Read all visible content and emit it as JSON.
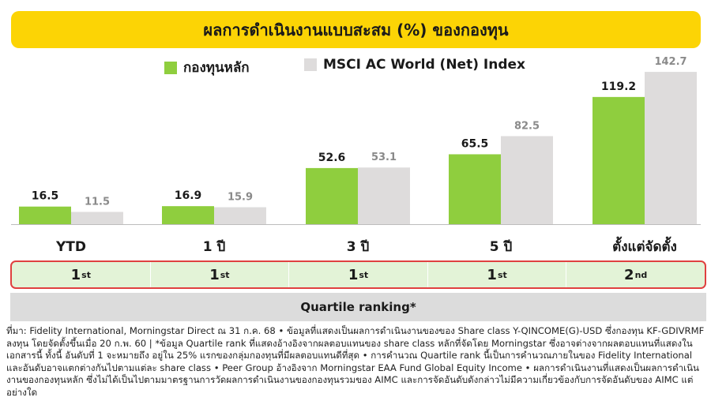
{
  "title": "ผลการดำเนินงานแบบสะสม (%) ของกองทุน",
  "colors": {
    "fund": "#8fce3e",
    "index": "#dedcdc",
    "title_bg": "#fcd405",
    "rank_bg": "#e3f3d7",
    "rank_border": "#e04040"
  },
  "chart_data": {
    "type": "bar",
    "categories": [
      "YTD",
      "1 ปี",
      "3 ปี",
      "5 ปี",
      "ตั้งแต่จัดตั้ง"
    ],
    "series": [
      {
        "name": "กองทุนหลัก",
        "values": [
          16.5,
          16.9,
          52.6,
          65.5,
          119.2
        ]
      },
      {
        "name": "MSCI AC World (Net) Index",
        "values": [
          11.5,
          15.9,
          53.1,
          82.5,
          142.7
        ]
      }
    ],
    "ylim": [
      0,
      162
    ],
    "grid": false,
    "legend": "top-center",
    "title": "ผลการดำเนินงานแบบสะสม (%) ของกองทุน"
  },
  "quartile": {
    "ranks": [
      {
        "num": "1",
        "suffix": "st"
      },
      {
        "num": "1",
        "suffix": "st"
      },
      {
        "num": "1",
        "suffix": "st"
      },
      {
        "num": "1",
        "suffix": "st"
      },
      {
        "num": "2",
        "suffix": "nd"
      }
    ],
    "label": "Quartile ranking*"
  },
  "footnote": "ที่มา: Fidelity International, Morningstar Direct ณ 31 ก.ค. 68 • ข้อมูลที่แสดงเป็นผลการดำเนินงานของของ Share class Y-QINCOME(G)-USD ซึ่งกองทุน KF-GDIVRMF ลงทุน โดยจัดตั้งขึ้นเมื่อ 20 ก.พ. 60 | *ข้อมูล Quartile rank ที่แสดงอ้างอิงจากผลตอบแทนของ share class หลักที่จัดโดย Morningstar ซึ่งอาจต่างจากผลตอบแทนที่แสดงในเอกสารนี้ ทั้งนี้ อันดับที่ 1 จะหมายถึง อยู่ใน 25% แรกของกลุ่มกองทุนที่มีผลตอบแทนดีที่สุด • การคำนวณ Quartile rank นี้เป็นการคำนวณภายในของ Fidelity International และอันดับอาจแตกต่างกันไปตามแต่ละ share class • Peer Group อ้างอิงจาก Morningstar EAA Fund Global Equity Income • ผลการดำเนินงานที่แสดงเป็นผลการดำเนินงานของกองทุนหลัก ซึ่งไม่ได้เป็นไปตามมาตรฐานการวัดผลการดำเนินงานของกองทุนรวมของ AIMC และการจัดอันดับดังกล่าวไม่มีความเกี่ยวข้องกับการจัดอันดับของ AIMC แต่อย่างใด"
}
